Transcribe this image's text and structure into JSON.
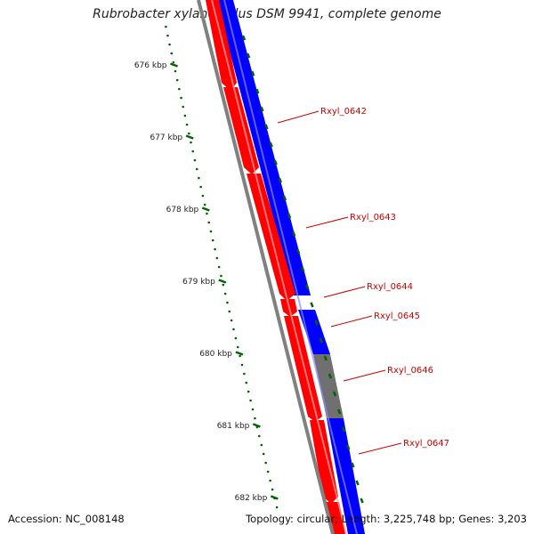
{
  "map": {
    "title": "Rubrobacter xylanophilus DSM 9941, complete genome",
    "accession_text": "Accession: NC_008148",
    "summary_text": "Topology: circular; Length: 3,225,748 bp; Genes: 3,203",
    "colors": {
      "forward_strand": "#ff0000",
      "reverse_strand": "#0000ff",
      "other_feature": "#707070",
      "backbone": "#808080",
      "ruler": "#006400",
      "gene_label": "#cc0000"
    },
    "ruler_ticks": [
      {
        "label": "676 kbp",
        "kbp": 676
      },
      {
        "label": "677 kbp",
        "kbp": 677
      },
      {
        "label": "678 kbp",
        "kbp": 678
      },
      {
        "label": "679 kbp",
        "kbp": 679
      },
      {
        "label": "680 kbp",
        "kbp": 680
      },
      {
        "label": "681 kbp",
        "kbp": 681
      },
      {
        "label": "682 kbp",
        "kbp": 682
      }
    ],
    "gene_labels": [
      {
        "label": "Rxyl_0642"
      },
      {
        "label": "Rxyl_0643"
      },
      {
        "label": "Rxyl_0644"
      },
      {
        "label": "Rxyl_0645"
      },
      {
        "label": "Rxyl_0646"
      },
      {
        "label": "Rxyl_0647"
      }
    ]
  }
}
